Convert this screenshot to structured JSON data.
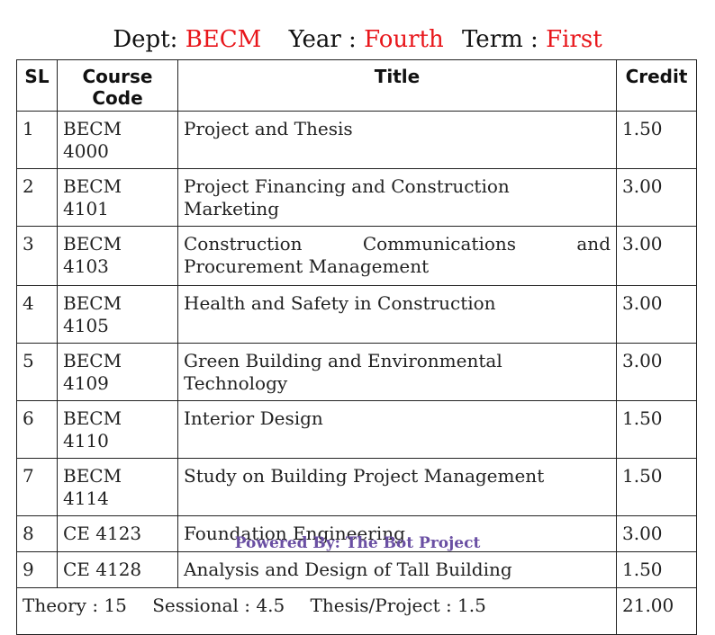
{
  "header": {
    "dept_label": "Dept:",
    "dept_value": "BECM",
    "year_label": "Year :",
    "year_value": "Fourth",
    "term_label": "Term :",
    "term_value": "First",
    "accent_color": "#e8161b"
  },
  "table": {
    "columns": {
      "sl": "SL",
      "code_line1": "Course",
      "code_line2": "Code",
      "title": "Title",
      "credit": "Credit"
    },
    "rows": [
      {
        "sl": "1",
        "code": "BECM 4000",
        "title": "Project and Thesis",
        "credit": "1.50"
      },
      {
        "sl": "2",
        "code": "BECM 4101",
        "title": "Project Financing and Construction Marketing",
        "credit": "3.00"
      },
      {
        "sl": "3",
        "code": "BECM 4103",
        "title_line1": "Construction Communications and",
        "title_line2": "Procurement Management",
        "credit": "3.00"
      },
      {
        "sl": "4",
        "code": "BECM 4105",
        "title": "Health and Safety in Construction",
        "credit": "3.00"
      },
      {
        "sl": "5",
        "code": "BECM 4109",
        "title": "Green Building and Environmental Technology",
        "credit": "3.00"
      },
      {
        "sl": "6",
        "code": "BECM 4110",
        "title": "Interior Design",
        "credit": "1.50"
      },
      {
        "sl": "7",
        "code": "BECM 4114",
        "title": "Study on Building Project Management",
        "credit": "1.50"
      },
      {
        "sl": "8",
        "code": "CE 4123",
        "title": "Foundation Engineering",
        "credit": "3.00"
      },
      {
        "sl": "9",
        "code": "CE 4128",
        "title": "Analysis and Design of Tall Building",
        "credit": "1.50"
      }
    ],
    "summary": {
      "theory": "Theory : 15",
      "sessional": "Sessional : 4.5",
      "thesis_project": "Thesis/Project : 1.5",
      "total_credit": "21.00"
    }
  },
  "footer": {
    "powered_by": "Powered By: The Bot Project",
    "color": "#6a4fa3"
  }
}
